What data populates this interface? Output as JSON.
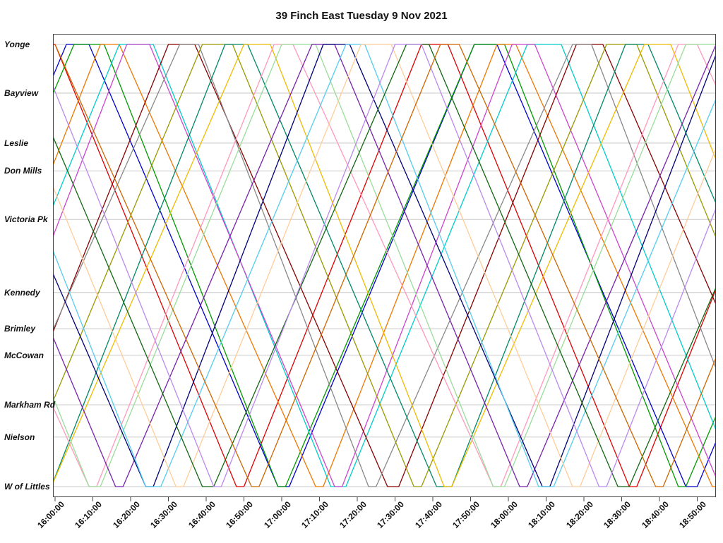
{
  "page": {
    "background": "#ffffff",
    "border_color": "#444444",
    "grid_color": "#c8c8c8"
  },
  "chart_data": {
    "type": "line",
    "title": "39 Finch East Tuesday 9 Nov 2021",
    "description": "Time-distance (Marey) diagram of bus runs on route 39 Finch East; x axis is clock time, y axis is stop location from Yonge (top) to W of Littles (bottom).",
    "x_axis": {
      "unit": "time of day",
      "domain_minutes_from_16_00": [
        0,
        175
      ],
      "tick_interval_minutes": 10,
      "tick_labels": [
        "16:00:00",
        "16:10:00",
        "16:20:00",
        "16:30:00",
        "16:40:00",
        "16:50:00",
        "17:00:00",
        "17:10:00",
        "17:20:00",
        "17:30:00",
        "17:40:00",
        "17:50:00",
        "18:00:00",
        "18:10:00",
        "18:20:00",
        "18:30:00",
        "18:40:00",
        "18:50:00"
      ]
    },
    "y_axis": {
      "orientation": "top-to-bottom",
      "stops": [
        {
          "name": "Yonge",
          "pos": 0.0
        },
        {
          "name": "Bayview",
          "pos": 0.11
        },
        {
          "name": "Leslie",
          "pos": 0.223
        },
        {
          "name": "Don Mills",
          "pos": 0.286
        },
        {
          "name": "Victoria Pk",
          "pos": 0.396
        },
        {
          "name": "Kennedy",
          "pos": 0.561
        },
        {
          "name": "Brimley",
          "pos": 0.643
        },
        {
          "name": "McCowan",
          "pos": 0.703
        },
        {
          "name": "Markham Rd",
          "pos": 0.815
        },
        {
          "name": "Nielson",
          "pos": 0.888
        },
        {
          "name": "W of Littles",
          "pos": 1.0
        }
      ]
    },
    "grid": {
      "horizontal": true,
      "vertical": false,
      "legend": "none"
    },
    "series": [
      {
        "name": "run-01",
        "color": "#dd0000",
        "points": [
          [
            -104,
            0
          ],
          [
            -56,
            1
          ],
          [
            -54,
            1
          ],
          [
            -7,
            0
          ],
          [
            0,
            0
          ],
          [
            48,
            1
          ],
          [
            50,
            1
          ],
          [
            97,
            0
          ],
          [
            104,
            0
          ],
          [
            152,
            1
          ],
          [
            154,
            1
          ],
          [
            201,
            0
          ]
        ]
      },
      {
        "name": "run-02",
        "color": "#0000cc",
        "points": [
          [
            -99,
            0
          ],
          [
            -49,
            1
          ],
          [
            -46,
            1
          ],
          [
            3,
            0
          ],
          [
            9,
            0
          ],
          [
            59,
            1
          ],
          [
            62,
            1
          ],
          [
            111,
            0
          ],
          [
            117,
            0
          ],
          [
            167,
            1
          ],
          [
            170,
            1
          ],
          [
            219,
            0
          ]
        ]
      },
      {
        "name": "run-03",
        "color": "#009900",
        "points": [
          [
            -93,
            0
          ],
          [
            -47,
            1
          ],
          [
            -45,
            1
          ],
          [
            5,
            0
          ],
          [
            13,
            0
          ],
          [
            59,
            1
          ],
          [
            61,
            1
          ],
          [
            111,
            0
          ],
          [
            119,
            0
          ],
          [
            165,
            1
          ],
          [
            167,
            1
          ],
          [
            217,
            0
          ]
        ]
      },
      {
        "name": "run-04",
        "color": "#ee7700",
        "points": [
          [
            -88,
            0
          ],
          [
            -36,
            1
          ],
          [
            -34,
            1
          ],
          [
            12,
            0
          ],
          [
            17,
            0
          ],
          [
            69,
            1
          ],
          [
            71,
            1
          ],
          [
            117,
            0
          ],
          [
            122,
            0
          ],
          [
            174,
            1
          ],
          [
            176,
            1
          ],
          [
            222,
            0
          ]
        ]
      },
      {
        "name": "run-05",
        "color": "#00cccc",
        "points": [
          [
            -82,
            0
          ],
          [
            -35,
            1
          ],
          [
            -31,
            1
          ],
          [
            17,
            0
          ],
          [
            26,
            0
          ],
          [
            73,
            1
          ],
          [
            77,
            1
          ],
          [
            125,
            0
          ],
          [
            134,
            0
          ],
          [
            181,
            1
          ],
          [
            185,
            1
          ]
        ]
      },
      {
        "name": "run-06",
        "color": "#cc44cc",
        "points": [
          [
            -77,
            0
          ],
          [
            -28,
            1
          ],
          [
            -26,
            1
          ],
          [
            19,
            0
          ],
          [
            25,
            0
          ],
          [
            74,
            1
          ],
          [
            76,
            1
          ],
          [
            121,
            0
          ],
          [
            127,
            0
          ],
          [
            176,
            1
          ],
          [
            178,
            1
          ],
          [
            223,
            0
          ]
        ]
      },
      {
        "name": "run-07",
        "color": "#880000",
        "points": [
          [
            -71,
            0
          ],
          [
            -20,
            1
          ],
          [
            -17,
            1
          ],
          [
            30,
            0
          ],
          [
            37,
            0
          ],
          [
            88,
            1
          ],
          [
            91,
            1
          ],
          [
            138,
            0
          ],
          [
            145,
            0
          ],
          [
            196,
            1
          ]
        ]
      },
      {
        "name": "run-08",
        "color": "#888888",
        "points": [
          [
            -66,
            0
          ],
          [
            -21,
            1
          ],
          [
            -19,
            1
          ],
          [
            33,
            0
          ],
          [
            38,
            0
          ],
          [
            83,
            1
          ],
          [
            85,
            1
          ],
          [
            137,
            0
          ],
          [
            142,
            0
          ],
          [
            187,
            1
          ]
        ]
      },
      {
        "name": "run-09",
        "color": "#999900",
        "points": [
          [
            -60,
            0
          ],
          [
            -12,
            1
          ],
          [
            -10,
            1
          ],
          [
            39,
            0
          ],
          [
            47,
            0
          ],
          [
            95,
            1
          ],
          [
            97,
            1
          ],
          [
            146,
            0
          ],
          [
            154,
            0
          ],
          [
            202,
            1
          ]
        ]
      },
      {
        "name": "run-10",
        "color": "#008866",
        "points": [
          [
            -55,
            0
          ],
          [
            -5,
            1
          ],
          [
            -1,
            1
          ],
          [
            45,
            0
          ],
          [
            51,
            0
          ],
          [
            101,
            1
          ],
          [
            105,
            1
          ],
          [
            151,
            0
          ],
          [
            157,
            0
          ],
          [
            207,
            1
          ]
        ]
      },
      {
        "name": "run-11",
        "color": "#eebb00",
        "points": [
          [
            -49,
            0
          ],
          [
            -3,
            1
          ],
          [
            -1,
            1
          ],
          [
            50,
            0
          ],
          [
            57,
            0
          ],
          [
            103,
            1
          ],
          [
            105,
            1
          ],
          [
            156,
            0
          ],
          [
            163,
            0
          ],
          [
            209,
            1
          ]
        ]
      },
      {
        "name": "run-12",
        "color": "#ff99bb",
        "points": [
          [
            -44,
            0
          ],
          [
            9,
            1
          ],
          [
            11,
            1
          ],
          [
            58,
            0
          ],
          [
            63,
            0
          ],
          [
            116,
            1
          ],
          [
            118,
            1
          ],
          [
            165,
            0
          ],
          [
            170,
            0
          ],
          [
            223,
            1
          ]
        ]
      },
      {
        "name": "run-13",
        "color": "#99dd99",
        "points": [
          [
            -38,
            0
          ],
          [
            9,
            1
          ],
          [
            12,
            1
          ],
          [
            60,
            0
          ],
          [
            69,
            0
          ],
          [
            116,
            1
          ],
          [
            119,
            1
          ],
          [
            167,
            0
          ],
          [
            176,
            0
          ],
          [
            223,
            1
          ]
        ]
      },
      {
        "name": "run-14",
        "color": "#7722aa",
        "points": [
          [
            -33,
            0
          ],
          [
            16,
            1
          ],
          [
            18,
            1
          ],
          [
            68,
            0
          ],
          [
            74,
            0
          ],
          [
            123,
            1
          ],
          [
            125,
            1
          ],
          [
            175,
            0
          ],
          [
            181,
            0
          ],
          [
            230,
            1
          ]
        ]
      },
      {
        "name": "run-15",
        "color": "#000077",
        "points": [
          [
            -27,
            0
          ],
          [
            24,
            1
          ],
          [
            26,
            1
          ],
          [
            71,
            0
          ],
          [
            78,
            0
          ],
          [
            129,
            1
          ],
          [
            131,
            1
          ],
          [
            176,
            0
          ],
          [
            183,
            0
          ],
          [
            234,
            1
          ]
        ]
      },
      {
        "name": "run-16",
        "color": "#55ccee",
        "points": [
          [
            -22,
            0
          ],
          [
            24,
            1
          ],
          [
            28,
            1
          ],
          [
            77,
            0
          ],
          [
            82,
            0
          ],
          [
            128,
            1
          ],
          [
            132,
            1
          ],
          [
            181,
            0
          ],
          [
            186,
            0
          ]
        ]
      },
      {
        "name": "run-17",
        "color": "#ffcc99",
        "points": [
          [
            -16,
            0
          ],
          [
            32,
            1
          ],
          [
            34,
            1
          ],
          [
            81,
            0
          ],
          [
            89,
            0
          ],
          [
            137,
            1
          ],
          [
            139,
            1
          ],
          [
            186,
            0
          ]
        ]
      },
      {
        "name": "run-18",
        "color": "#116611",
        "points": [
          [
            -11,
            0
          ],
          [
            39,
            1
          ],
          [
            42,
            1
          ],
          [
            93,
            0
          ],
          [
            99,
            0
          ],
          [
            149,
            1
          ],
          [
            152,
            1
          ],
          [
            203,
            0
          ]
        ]
      },
      {
        "name": "run-19",
        "color": "#bb88ee",
        "points": [
          [
            -5,
            0
          ],
          [
            42,
            1
          ],
          [
            44,
            1
          ],
          [
            90,
            0
          ],
          [
            97,
            0
          ],
          [
            144,
            1
          ],
          [
            146,
            1
          ],
          [
            192,
            0
          ]
        ]
      },
      {
        "name": "run-20",
        "color": "#cc6600",
        "points": [
          [
            0,
            0
          ],
          [
            52,
            1
          ],
          [
            54,
            1
          ],
          [
            102,
            0
          ],
          [
            107,
            0
          ],
          [
            159,
            1
          ],
          [
            161,
            1
          ],
          [
            209,
            0
          ]
        ]
      }
    ]
  }
}
